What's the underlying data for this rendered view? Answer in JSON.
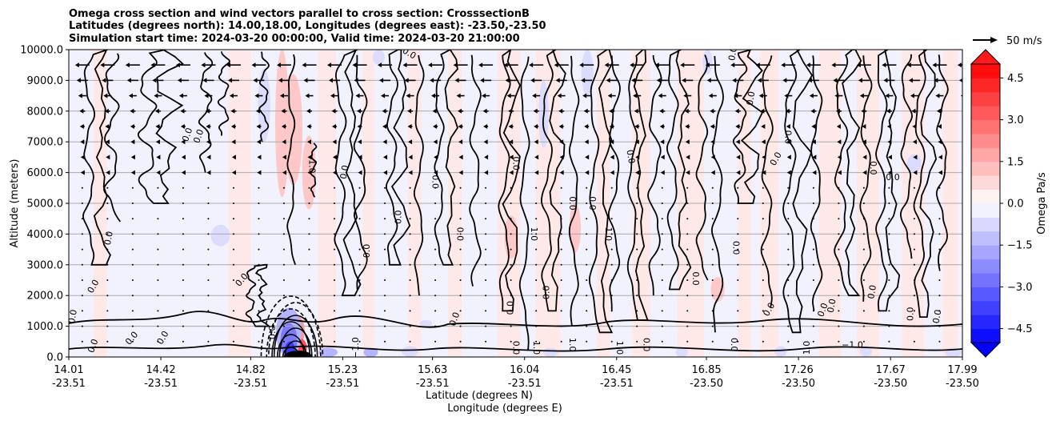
{
  "chart_data": {
    "type": "contour",
    "title_lines": [
      "Omega cross section and wind vectors parallel to cross section: CrosssectionB",
      "Latitudes (degrees north): 14.00,18.00, Longitudes (degrees east): -23.50,-23.50",
      "Simulation start time: 2024-03-20 00:00:00, Valid time: 2024-03-20 21:00:00"
    ],
    "xlabel_1": "Latitude (degrees N)",
    "xlabel_2": "Longitude (degrees E)",
    "ylabel": "Altitude (meters)",
    "x_range": [
      14.01,
      17.99
    ],
    "ylim": [
      0,
      10000
    ],
    "grid": "horizontal",
    "x_ticks": [
      {
        "lat": "14.01",
        "lon": "-23.51"
      },
      {
        "lat": "14.42",
        "lon": "-23.51"
      },
      {
        "lat": "14.82",
        "lon": "-23.51"
      },
      {
        "lat": "15.23",
        "lon": "-23.51"
      },
      {
        "lat": "15.63",
        "lon": "-23.51"
      },
      {
        "lat": "16.04",
        "lon": "-23.51"
      },
      {
        "lat": "16.45",
        "lon": "-23.51"
      },
      {
        "lat": "16.85",
        "lon": "-23.50"
      },
      {
        "lat": "17.26",
        "lon": "-23.50"
      },
      {
        "lat": "17.67",
        "lon": "-23.50"
      },
      {
        "lat": "17.99",
        "lon": "-23.50"
      }
    ],
    "y_ticks": [
      "0.0",
      "1000.0",
      "2000.0",
      "3000.0",
      "4000.0",
      "5000.0",
      "6000.0",
      "7000.0",
      "8000.0",
      "9000.0",
      "10000.0"
    ],
    "y_tick_values": [
      0,
      1000,
      2000,
      3000,
      4000,
      5000,
      6000,
      7000,
      8000,
      9000,
      10000
    ],
    "colorbar": {
      "label": "Omega Pa/s",
      "range": [
        -5.0,
        5.0
      ],
      "ticks": [
        "4.5",
        "3.0",
        "1.5",
        "0.0",
        "−1.5",
        "−3.0",
        "−4.5"
      ],
      "tick_values": [
        4.5,
        3.0,
        1.5,
        0.0,
        -1.5,
        -3.0,
        -4.5
      ],
      "extend": "both",
      "colormap": "bwr"
    },
    "vector_key": {
      "label": "50 m/s",
      "speed": 50
    },
    "contour_labels": [
      {
        "text": "0.0",
        "x": 14.55,
        "y": 7200,
        "rot": -70
      },
      {
        "text": "0.0",
        "x": 14.6,
        "y": 7150,
        "rot": -70
      },
      {
        "text": "0.0",
        "x": 14.2,
        "y": 3850,
        "rot": -80
      },
      {
        "text": "0.0",
        "x": 14.13,
        "y": 2250,
        "rot": -60
      },
      {
        "text": "0.0",
        "x": 14.04,
        "y": 1300,
        "rot": -80
      },
      {
        "text": "0.0",
        "x": 14.13,
        "y": 330,
        "rot": -70
      },
      {
        "text": "0.0",
        "x": 14.3,
        "y": 550,
        "rot": -50
      },
      {
        "text": "0.0",
        "x": 14.44,
        "y": 580,
        "rot": -60
      },
      {
        "text": "0.0",
        "x": 14.79,
        "y": 2450,
        "rot": -50
      },
      {
        "text": "1.0",
        "x": 15.08,
        "y": 6200,
        "rot": 90
      },
      {
        "text": "0.0",
        "x": 15.25,
        "y": 6000,
        "rot": -80
      },
      {
        "text": "0.0",
        "x": 15.52,
        "y": 9800,
        "rot": 30
      },
      {
        "text": "0.0",
        "x": 15.49,
        "y": 4550,
        "rot": -90
      },
      {
        "text": "0.0",
        "x": 15.35,
        "y": 3450,
        "rot": -90
      },
      {
        "text": "0.0",
        "x": 15.63,
        "y": 5700,
        "rot": 90
      },
      {
        "text": "0.0",
        "x": 15.74,
        "y": 4000,
        "rot": 90
      },
      {
        "text": "0.0",
        "x": 15.99,
        "y": 6300,
        "rot": 90
      },
      {
        "text": "1.0",
        "x": 16.07,
        "y": 4000,
        "rot": 90
      },
      {
        "text": "0.0",
        "x": 16.24,
        "y": 5000,
        "rot": 90
      },
      {
        "text": "0.0",
        "x": 16.33,
        "y": 5000,
        "rot": 90
      },
      {
        "text": "1.0",
        "x": 16.4,
        "y": 4000,
        "rot": 90
      },
      {
        "text": "0.0",
        "x": 16.15,
        "y": 2100,
        "rot": -90
      },
      {
        "text": "0.0",
        "x": 16.5,
        "y": 6500,
        "rot": 80
      },
      {
        "text": "0.0",
        "x": 16.97,
        "y": 3550,
        "rot": 90
      },
      {
        "text": "0.0",
        "x": 16.79,
        "y": 2550,
        "rot": 90
      },
      {
        "text": "0.0",
        "x": 17.17,
        "y": 6400,
        "rot": -60
      },
      {
        "text": "0.0",
        "x": 17.2,
        "y": 7150,
        "rot": 90
      },
      {
        "text": "0.0",
        "x": 17.58,
        "y": 6150,
        "rot": 90
      },
      {
        "text": "0.0",
        "x": 17.68,
        "y": 5750,
        "rot": 0
      },
      {
        "text": "0.0",
        "x": 16.98,
        "y": 9850,
        "rot": -80
      },
      {
        "text": "0.0",
        "x": 17.06,
        "y": 8400,
        "rot": -80
      },
      {
        "text": "0.0",
        "x": 17.6,
        "y": 2100,
        "rot": -80
      },
      {
        "text": "0.0",
        "x": 17.77,
        "y": 1400,
        "rot": -90
      },
      {
        "text": "0.0",
        "x": 17.42,
        "y": 1650,
        "rot": -80
      },
      {
        "text": "0.0",
        "x": 17.38,
        "y": 1500,
        "rot": -70
      },
      {
        "text": "0.0",
        "x": 17.14,
        "y": 1500,
        "rot": -60
      },
      {
        "text": "1.0",
        "x": 17.31,
        "y": 300,
        "rot": -90
      },
      {
        "text": "−1.0",
        "x": 17.5,
        "y": 300,
        "rot": 0
      },
      {
        "text": "0.0",
        "x": 17.89,
        "y": 1300,
        "rot": -80
      },
      {
        "text": "0.0",
        "x": 15.99,
        "y": 300,
        "rot": 90
      },
      {
        "text": "1.0",
        "x": 16.08,
        "y": 300,
        "rot": 90
      },
      {
        "text": "1.0",
        "x": 16.24,
        "y": 400,
        "rot": 90
      },
      {
        "text": "1.0",
        "x": 16.45,
        "y": 300,
        "rot": 90
      },
      {
        "text": "0.0",
        "x": 16.57,
        "y": 400,
        "rot": 90
      },
      {
        "text": "0.0",
        "x": 16.96,
        "y": 400,
        "rot": 90
      },
      {
        "text": "0.0",
        "x": 15.99,
        "y": 1600,
        "rot": -90
      },
      {
        "text": "0.0",
        "x": 15.74,
        "y": 1200,
        "rot": -70
      },
      {
        "text": "0.0",
        "x": 14.93,
        "y": 800,
        "rot": -90
      },
      {
        "text": "−1.0",
        "x": 15.3,
        "y": 300,
        "rot": -90
      }
    ]
  }
}
